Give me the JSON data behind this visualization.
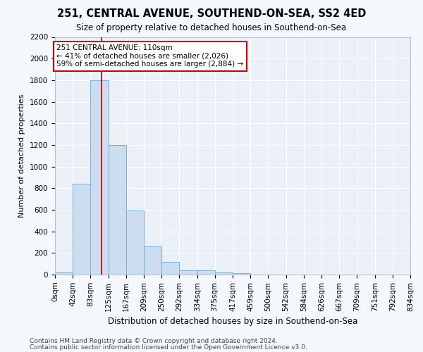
{
  "title1": "251, CENTRAL AVENUE, SOUTHEND-ON-SEA, SS2 4ED",
  "title2": "Size of property relative to detached houses in Southend-on-Sea",
  "xlabel": "Distribution of detached houses by size in Southend-on-Sea",
  "ylabel": "Number of detached properties",
  "footnote1": "Contains HM Land Registry data © Crown copyright and database right 2024.",
  "footnote2": "Contains public sector information licensed under the Open Government Licence v3.0.",
  "annotation_line1": "251 CENTRAL AVENUE: 110sqm",
  "annotation_line2": "← 41% of detached houses are smaller (2,026)",
  "annotation_line3": "59% of semi-detached houses are larger (2,884) →",
  "bar_color": "#ccddf0",
  "bar_edge_color": "#7bafd4",
  "vline_color": "#aa0000",
  "annotation_box_color": "#ffffff",
  "annotation_box_edge": "#cc0000",
  "bins": [
    0,
    42,
    83,
    125,
    167,
    209,
    250,
    292,
    334,
    375,
    417,
    459,
    500,
    542,
    584,
    626,
    667,
    709,
    751,
    792,
    834
  ],
  "bin_labels": [
    "0sqm",
    "42sqm",
    "83sqm",
    "125sqm",
    "167sqm",
    "209sqm",
    "250sqm",
    "292sqm",
    "334sqm",
    "375sqm",
    "417sqm",
    "459sqm",
    "500sqm",
    "542sqm",
    "584sqm",
    "626sqm",
    "667sqm",
    "709sqm",
    "751sqm",
    "792sqm",
    "834sqm"
  ],
  "bar_heights": [
    20,
    840,
    1800,
    1200,
    590,
    260,
    120,
    40,
    40,
    20,
    10,
    0,
    0,
    0,
    0,
    0,
    0,
    0,
    0,
    0
  ],
  "vline_x": 110,
  "ylim": [
    0,
    2200
  ],
  "yticks": [
    0,
    200,
    400,
    600,
    800,
    1000,
    1200,
    1400,
    1600,
    1800,
    2000,
    2200
  ],
  "background_color": "#f4f7fc",
  "plot_bg_color": "#eaeff8",
  "grid_color": "#ffffff",
  "title1_fontsize": 10.5,
  "title2_fontsize": 8.5,
  "xlabel_fontsize": 8.5,
  "ylabel_fontsize": 8,
  "tick_fontsize": 7.5,
  "footnote_fontsize": 6.5
}
